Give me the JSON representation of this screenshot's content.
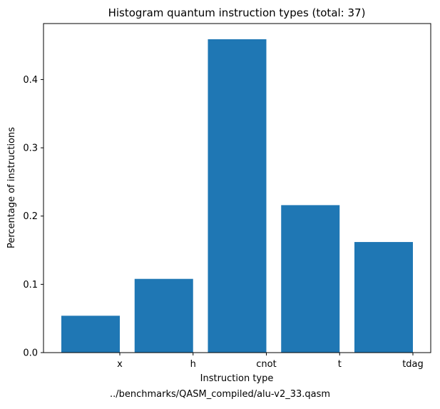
{
  "chart_data": {
    "type": "bar",
    "title": "Histogram quantum instruction types (total: 37)",
    "xlabel": "Instruction type",
    "ylabel": "Percentage of instructions",
    "categories": [
      "x",
      "h",
      "cnot",
      "t",
      "tdag"
    ],
    "values": [
      0.054,
      0.108,
      0.459,
      0.216,
      0.162
    ],
    "ylim": [
      0,
      0.482
    ],
    "yticks": [
      0.0,
      0.1,
      0.2,
      0.3,
      0.4
    ],
    "ytick_labels": [
      "0.0",
      "0.1",
      "0.2",
      "0.3",
      "0.4"
    ],
    "grid": false,
    "bar_color": "#1f77b4"
  },
  "caption": "../benchmarks/QASM_compiled/alu-v2_33.qasm"
}
